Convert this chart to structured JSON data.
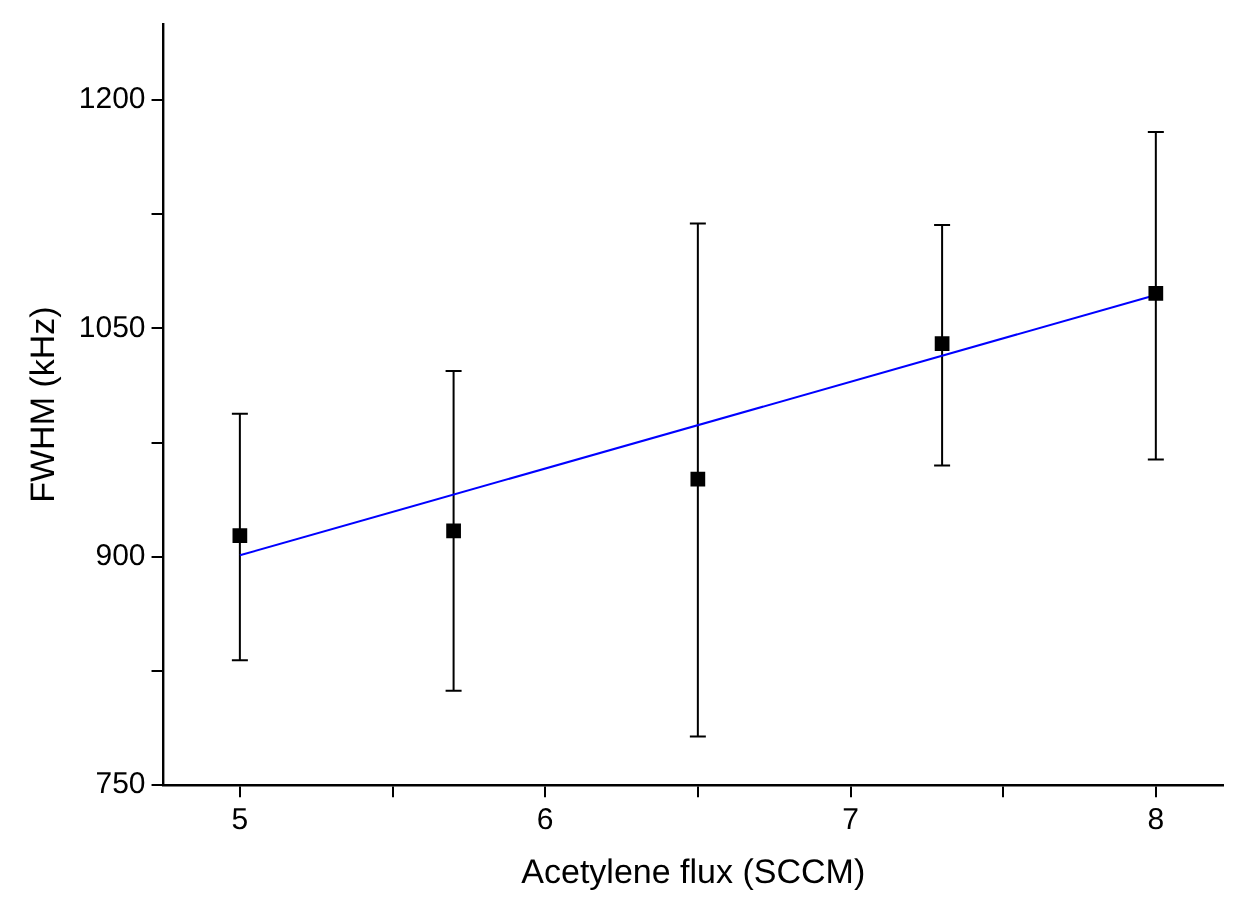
{
  "chart_data": {
    "type": "scatter",
    "xlabel": "Acetylene flux (SCCM)",
    "ylabel": "FWHM (kHz)",
    "xlim": [
      4.75,
      8.22
    ],
    "ylim": [
      750,
      1250
    ],
    "xticks": [
      5,
      {
        "value": 5.5,
        "label": null
      },
      6,
      {
        "value": 6.5,
        "label": null
      },
      7,
      {
        "value": 7.5,
        "label": null
      },
      8
    ],
    "yticks": [
      750,
      {
        "value": 825,
        "label": null
      },
      900,
      {
        "value": 975,
        "label": null
      },
      1050,
      {
        "value": 1125,
        "label": null
      },
      1200
    ],
    "grid": false,
    "legend": false,
    "series": [
      {
        "color": "#000000",
        "marker": "square",
        "x": [
          5,
          5.7,
          6.5,
          7.3,
          8
        ],
        "values": [
          914,
          917,
          951,
          1040,
          1073
        ],
        "errors": [
          [
            832,
            994
          ],
          [
            812,
            1022
          ],
          [
            782,
            1119
          ],
          [
            960,
            1118
          ],
          [
            964,
            1179
          ]
        ]
      },
      {
        "type": "line",
        "color": "#0000ff",
        "marker": "none",
        "line_style": "solid",
        "x": [
          5,
          8
        ],
        "values": [
          901,
          1072
        ]
      }
    ]
  }
}
